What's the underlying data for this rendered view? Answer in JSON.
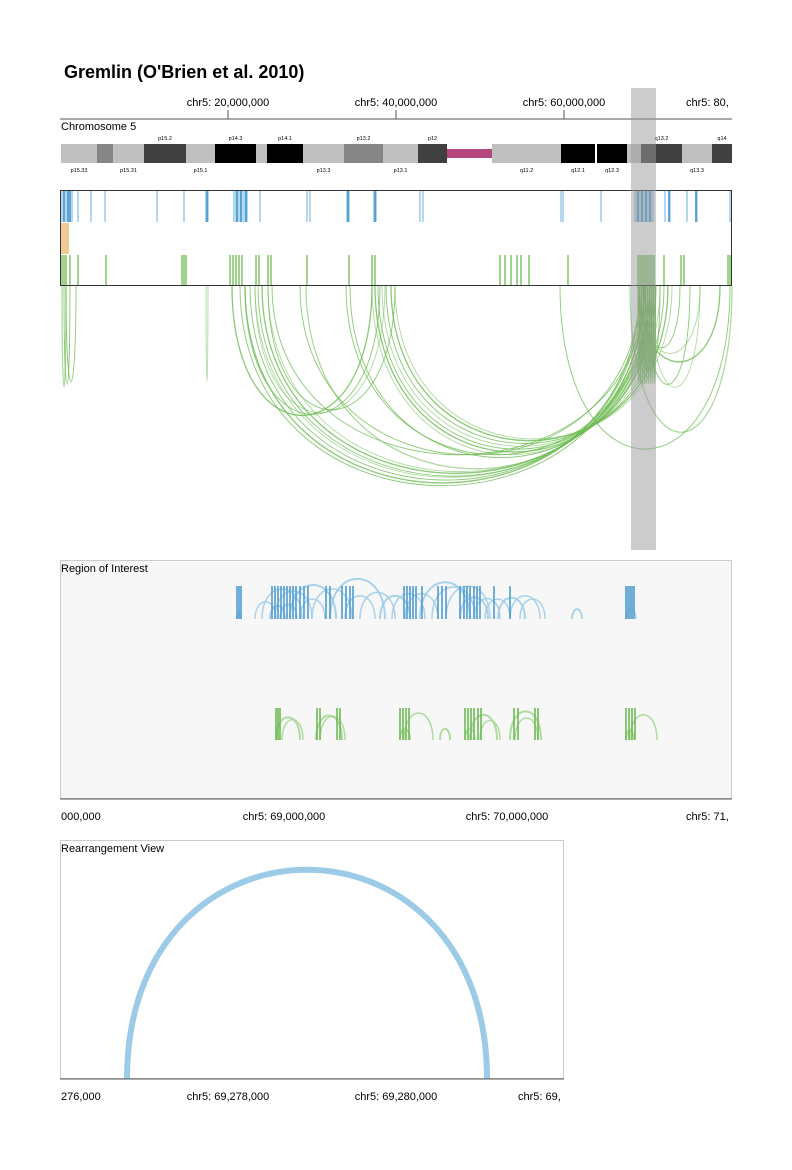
{
  "title": "Gremlin (O'Brien et al. 2010)",
  "overview": {
    "ticks": [
      "chr5: 20,000,000",
      "chr5: 40,000,000",
      "chr5: 60,000,000",
      "chr5: 80,"
    ],
    "ideogram_label": "Chromosome 5",
    "bands": [
      {
        "name": "p15.33",
        "stain": "gpos25",
        "label_pos": "below"
      },
      {
        "name": "p15.32",
        "stain": "gpos75",
        "label_pos": ""
      },
      {
        "name": "p15.31",
        "stain": "gpos25",
        "label_pos": "below"
      },
      {
        "name": "p15.2",
        "stain": "gpos100",
        "label_pos": "above"
      },
      {
        "name": "p15.1",
        "stain": "gpos25",
        "label_pos": "below"
      },
      {
        "name": "p14.3",
        "stain": "black",
        "label_pos": "above"
      },
      {
        "name": "p14.2",
        "stain": "gpos25",
        "label_pos": ""
      },
      {
        "name": "p14.1",
        "stain": "black",
        "label_pos": "above"
      },
      {
        "name": "p13.3",
        "stain": "gpos25",
        "label_pos": "below"
      },
      {
        "name": "p13.2",
        "stain": "gpos75",
        "label_pos": "above"
      },
      {
        "name": "p13.1",
        "stain": "gpos25",
        "label_pos": "below"
      },
      {
        "name": "p12",
        "stain": "gpos100",
        "label_pos": "above"
      },
      {
        "name": "p11",
        "stain": "acen",
        "label_pos": ""
      },
      {
        "name": "q11.1",
        "stain": "acen",
        "label_pos": ""
      },
      {
        "name": "q11.2",
        "stain": "gpos25",
        "label_pos": "below"
      },
      {
        "name": "q12.1",
        "stain": "black",
        "label_pos": "below"
      },
      {
        "name": "q12.3",
        "stain": "black",
        "label_pos": "below"
      },
      {
        "name": "q13.1",
        "stain": "gpos25",
        "label_pos": ""
      },
      {
        "name": "q13.2",
        "stain": "gpos100",
        "label_pos": "above"
      },
      {
        "name": "q13.3",
        "stain": "gpos25",
        "label_pos": "below"
      },
      {
        "name": "q14",
        "stain": "gpos100",
        "label_pos": "above"
      }
    ]
  },
  "roi": {
    "title": "Region of Interest",
    "ticks": [
      "000,000",
      "chr5: 69,000,000",
      "chr5: 70,000,000",
      "chr5: 71,"
    ]
  },
  "rearrangement": {
    "title": "Rearrangement View",
    "ticks": [
      "276,000",
      "chr5: 69,278,000",
      "chr5: 69,280,000",
      "chr5: 69,"
    ]
  },
  "colors": {
    "blue": "#4f9dd1",
    "light_blue": "#9ccbe8",
    "orange": "#e6b15c",
    "green": "#6dbb52",
    "light_green": "#a8d896",
    "acen": "#b5477f",
    "selection": "#9a9a9a",
    "panel_bg": "#f7f7f7"
  }
}
